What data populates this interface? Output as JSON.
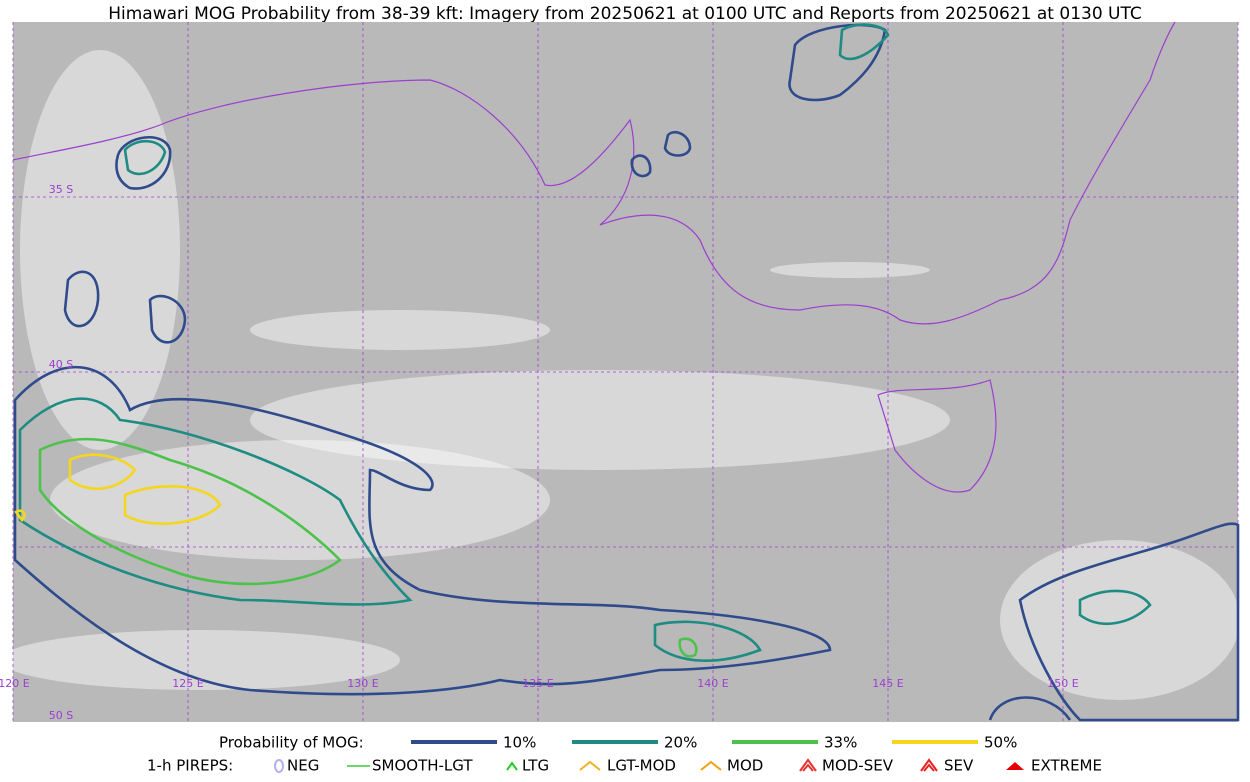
{
  "title": "Himawari MOG Probability from 38-39 kft: Imagery from 20250621 at 0100 UTC and Reports from 20250621 at 0130 UTC",
  "map": {
    "longitude_labels": [
      "120 E",
      "125 E",
      "130 E",
      "135 E",
      "140 E",
      "145 E",
      "150 E"
    ],
    "latitude_labels": [
      "35 S",
      "40 S",
      "50 S"
    ]
  },
  "legend": {
    "probability": {
      "label": "Probability of MOG:",
      "items": [
        {
          "label": "10%",
          "color": "#2f4b8c"
        },
        {
          "label": "20%",
          "color": "#1e8c82"
        },
        {
          "label": "33%",
          "color": "#4cc24c"
        },
        {
          "label": "50%",
          "color": "#f5d61e"
        }
      ]
    },
    "pireps": {
      "label": "1-h PIREPS:",
      "items": [
        {
          "label": "NEG",
          "color": "#b0b0f0"
        },
        {
          "label": "SMOOTH-LGT",
          "color": "#3ec83e"
        },
        {
          "label": "LTG",
          "color": "#22cc22"
        },
        {
          "label": "LGT-MOD",
          "color": "#f0b020"
        },
        {
          "label": "MOD",
          "color": "#f0a010"
        },
        {
          "label": "MOD-SEV",
          "color": "#e83030"
        },
        {
          "label": "SEV",
          "color": "#e82020"
        },
        {
          "label": "EXTREME",
          "color": "#e80000"
        }
      ]
    }
  }
}
